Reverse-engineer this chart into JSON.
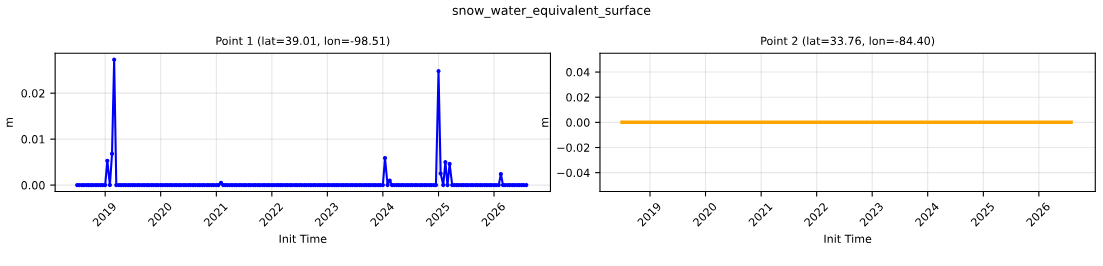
{
  "chart_data": [
    {
      "type": "line",
      "title": "Point 1 (lat=39.01, lon=-98.51)",
      "xlabel": "Init Time",
      "ylabel": "m",
      "annotations": [
        "snow_water_equivalent_surface"
      ],
      "x": [
        "2018-07-01",
        "2018-07-15",
        "2018-08-01",
        "2018-08-15",
        "2018-09-01",
        "2018-09-15",
        "2018-10-01",
        "2018-10-15",
        "2018-11-01",
        "2018-11-15",
        "2018-12-01",
        "2018-12-15",
        "2019-01-01",
        "2019-01-15",
        "2019-02-01",
        "2019-02-15",
        "2019-03-01",
        "2019-03-15",
        "2019-04-01",
        "2019-04-15",
        "2019-05-01",
        "2019-05-15",
        "2019-06-01",
        "2019-06-15",
        "2019-07-01",
        "2019-07-15",
        "2019-08-01",
        "2019-08-15",
        "2019-09-01",
        "2019-09-15",
        "2019-10-01",
        "2019-10-15",
        "2019-11-01",
        "2019-11-15",
        "2019-12-01",
        "2019-12-15",
        "2020-01-01",
        "2020-01-15",
        "2020-02-01",
        "2020-02-15",
        "2020-03-01",
        "2020-03-15",
        "2020-04-01",
        "2020-04-15",
        "2020-05-01",
        "2020-05-15",
        "2020-06-01",
        "2020-06-15",
        "2020-07-01",
        "2020-07-15",
        "2020-08-01",
        "2020-08-15",
        "2020-09-01",
        "2020-09-15",
        "2020-10-01",
        "2020-10-15",
        "2020-11-01",
        "2020-11-15",
        "2020-12-01",
        "2020-12-15",
        "2021-01-01",
        "2021-01-15",
        "2021-02-01",
        "2021-02-15",
        "2021-03-01",
        "2021-03-15",
        "2021-04-01",
        "2021-04-15",
        "2021-05-01",
        "2021-05-15",
        "2021-06-01",
        "2021-06-15",
        "2021-07-01",
        "2021-07-15",
        "2021-08-01",
        "2021-08-15",
        "2021-09-01",
        "2021-09-15",
        "2021-10-01",
        "2021-10-15",
        "2021-11-01",
        "2021-11-15",
        "2021-12-01",
        "2021-12-15",
        "2022-01-01",
        "2022-01-15",
        "2022-02-01",
        "2022-02-15",
        "2022-03-01",
        "2022-03-15",
        "2022-04-01",
        "2022-04-15",
        "2022-05-01",
        "2022-05-15",
        "2022-06-01",
        "2022-06-15",
        "2022-07-01",
        "2022-07-15",
        "2022-08-01",
        "2022-08-15",
        "2022-09-01",
        "2022-09-15",
        "2022-10-01",
        "2022-10-15",
        "2022-11-01",
        "2022-11-15",
        "2022-12-01",
        "2022-12-15",
        "2023-01-01",
        "2023-01-15",
        "2023-02-01",
        "2023-02-15",
        "2023-03-01",
        "2023-03-15",
        "2023-04-01",
        "2023-04-15",
        "2023-05-01",
        "2023-05-15",
        "2023-06-01",
        "2023-06-15",
        "2023-07-01",
        "2023-07-15",
        "2023-08-01",
        "2023-08-15",
        "2023-09-01",
        "2023-09-15",
        "2023-10-01",
        "2023-10-15",
        "2023-11-01",
        "2023-11-15",
        "2023-12-01",
        "2023-12-15",
        "2024-01-01",
        "2024-01-15",
        "2024-02-01",
        "2024-02-15",
        "2024-03-01",
        "2024-03-15",
        "2024-04-01",
        "2024-04-15",
        "2024-05-01",
        "2024-05-15",
        "2024-06-01",
        "2024-06-15",
        "2024-07-01",
        "2024-07-15",
        "2024-08-01",
        "2024-08-15",
        "2024-09-01",
        "2024-09-15",
        "2024-10-01",
        "2024-10-15",
        "2024-11-01",
        "2024-11-15",
        "2024-12-01",
        "2024-12-15",
        "2025-01-01",
        "2025-01-15",
        "2025-02-01",
        "2025-02-15",
        "2025-03-01",
        "2025-03-15",
        "2025-04-01",
        "2025-04-15",
        "2025-05-01",
        "2025-05-15",
        "2025-06-01",
        "2025-06-15",
        "2025-07-01",
        "2025-07-15",
        "2025-08-01",
        "2025-08-15",
        "2025-09-01",
        "2025-09-15",
        "2025-10-01",
        "2025-10-15",
        "2025-11-01",
        "2025-11-15",
        "2025-12-01",
        "2025-12-15",
        "2026-01-01",
        "2026-01-15",
        "2026-02-01",
        "2026-02-15",
        "2026-03-01",
        "2026-03-15",
        "2026-04-01",
        "2026-04-15",
        "2026-05-01",
        "2026-05-15",
        "2026-06-01",
        "2026-06-15",
        "2026-07-01",
        "2026-07-15",
        "2026-08-01"
      ],
      "series": [
        {
          "color": "#0000ff",
          "values": [
            0,
            0,
            0,
            0,
            0,
            0,
            0,
            0,
            0,
            0,
            0,
            0,
            0,
            0.0053,
            0,
            0.0068,
            0.0273,
            0,
            0,
            0,
            0,
            0,
            0,
            0,
            0,
            0,
            0,
            0,
            0,
            0,
            0,
            0,
            0,
            0,
            0,
            0,
            0,
            0,
            0,
            0,
            0,
            0,
            0,
            0,
            0,
            0,
            0,
            0,
            0,
            0,
            0,
            0,
            0,
            0,
            0,
            0,
            0,
            0,
            0,
            0,
            0,
            0,
            0.0005,
            0,
            0,
            0,
            0,
            0,
            0,
            0,
            0,
            0,
            0,
            0,
            0,
            0,
            0,
            0,
            0,
            0,
            0,
            0,
            0,
            0,
            0,
            0,
            0,
            0,
            0,
            0,
            0,
            0,
            0,
            0,
            0,
            0,
            0,
            0,
            0,
            0,
            0,
            0,
            0,
            0,
            0,
            0,
            0,
            0,
            0,
            0,
            0,
            0,
            0,
            0,
            0,
            0,
            0,
            0,
            0,
            0,
            0,
            0,
            0,
            0,
            0,
            0,
            0,
            0,
            0,
            0,
            0,
            0,
            0,
            0.0059,
            0,
            0.001,
            0,
            0,
            0,
            0,
            0,
            0,
            0,
            0,
            0,
            0,
            0,
            0,
            0,
            0,
            0,
            0,
            0,
            0,
            0,
            0,
            0.0248,
            0.0025,
            0,
            0.005,
            0,
            0.0046,
            0,
            0,
            0,
            0,
            0,
            0,
            0,
            0,
            0,
            0,
            0,
            0,
            0,
            0,
            0,
            0,
            0,
            0,
            0,
            0,
            0,
            0.0024,
            0,
            0,
            0,
            0,
            0,
            0,
            0,
            0,
            0,
            0,
            0
          ]
        }
      ],
      "xlim": [
        "2018-02-06",
        "2027-01-07"
      ],
      "xticks": [
        "2019",
        "2020",
        "2021",
        "2022",
        "2023",
        "2024",
        "2025",
        "2026"
      ],
      "ylim": [
        -0.0014,
        0.0287
      ],
      "yticks": [
        {
          "value": 0,
          "label": "0.00"
        },
        {
          "value": 0.01,
          "label": "0.01"
        },
        {
          "value": 0.02,
          "label": "0.02"
        }
      ],
      "grid": true,
      "marker": "circle",
      "line_style": "solid"
    },
    {
      "type": "line",
      "title": "Point 2 (lat=33.76, lon=-84.40)",
      "xlabel": "Init Time",
      "ylabel": "m",
      "x": [
        "2018-07-01",
        "2018-07-15",
        "2018-08-01",
        "2018-08-15",
        "2018-09-01",
        "2018-09-15",
        "2018-10-01",
        "2018-10-15",
        "2018-11-01",
        "2018-11-15",
        "2018-12-01",
        "2018-12-15",
        "2019-01-01",
        "2019-01-15",
        "2019-02-01",
        "2019-02-15",
        "2019-03-01",
        "2019-03-15",
        "2019-04-01",
        "2019-04-15",
        "2019-05-01",
        "2019-05-15",
        "2019-06-01",
        "2019-06-15",
        "2019-07-01",
        "2019-07-15",
        "2019-08-01",
        "2019-08-15",
        "2019-09-01",
        "2019-09-15",
        "2019-10-01",
        "2019-10-15",
        "2019-11-01",
        "2019-11-15",
        "2019-12-01",
        "2019-12-15",
        "2020-01-01",
        "2020-01-15",
        "2020-02-01",
        "2020-02-15",
        "2020-03-01",
        "2020-03-15",
        "2020-04-01",
        "2020-04-15",
        "2020-05-01",
        "2020-05-15",
        "2020-06-01",
        "2020-06-15",
        "2020-07-01",
        "2020-07-15",
        "2020-08-01",
        "2020-08-15",
        "2020-09-01",
        "2020-09-15",
        "2020-10-01",
        "2020-10-15",
        "2020-11-01",
        "2020-11-15",
        "2020-12-01",
        "2020-12-15",
        "2021-01-01",
        "2021-01-15",
        "2021-02-01",
        "2021-02-15",
        "2021-03-01",
        "2021-03-15",
        "2021-04-01",
        "2021-04-15",
        "2021-05-01",
        "2021-05-15",
        "2021-06-01",
        "2021-06-15",
        "2021-07-01",
        "2021-07-15",
        "2021-08-01",
        "2021-08-15",
        "2021-09-01",
        "2021-09-15",
        "2021-10-01",
        "2021-10-15",
        "2021-11-01",
        "2021-11-15",
        "2021-12-01",
        "2021-12-15",
        "2022-01-01",
        "2022-01-15",
        "2022-02-01",
        "2022-02-15",
        "2022-03-01",
        "2022-03-15",
        "2022-04-01",
        "2022-04-15",
        "2022-05-01",
        "2022-05-15",
        "2022-06-01",
        "2022-06-15",
        "2022-07-01",
        "2022-07-15",
        "2022-08-01",
        "2022-08-15",
        "2022-09-01",
        "2022-09-15",
        "2022-10-01",
        "2022-10-15",
        "2022-11-01",
        "2022-11-15",
        "2022-12-01",
        "2022-12-15",
        "2023-01-01",
        "2023-01-15",
        "2023-02-01",
        "2023-02-15",
        "2023-03-01",
        "2023-03-15",
        "2023-04-01",
        "2023-04-15",
        "2023-05-01",
        "2023-05-15",
        "2023-06-01",
        "2023-06-15",
        "2023-07-01",
        "2023-07-15",
        "2023-08-01",
        "2023-08-15",
        "2023-09-01",
        "2023-09-15",
        "2023-10-01",
        "2023-10-15",
        "2023-11-01",
        "2023-11-15",
        "2023-12-01",
        "2023-12-15",
        "2024-01-01",
        "2024-01-15",
        "2024-02-01",
        "2024-02-15",
        "2024-03-01",
        "2024-03-15",
        "2024-04-01",
        "2024-04-15",
        "2024-05-01",
        "2024-05-15",
        "2024-06-01",
        "2024-06-15",
        "2024-07-01",
        "2024-07-15",
        "2024-08-01",
        "2024-08-15",
        "2024-09-01",
        "2024-09-15",
        "2024-10-01",
        "2024-10-15",
        "2024-11-01",
        "2024-11-15",
        "2024-12-01",
        "2024-12-15",
        "2025-01-01",
        "2025-01-15",
        "2025-02-01",
        "2025-02-15",
        "2025-03-01",
        "2025-03-15",
        "2025-04-01",
        "2025-04-15",
        "2025-05-01",
        "2025-05-15",
        "2025-06-01",
        "2025-06-15",
        "2025-07-01",
        "2025-07-15",
        "2025-08-01",
        "2025-08-15",
        "2025-09-01",
        "2025-09-15",
        "2025-10-01",
        "2025-10-15",
        "2025-11-01",
        "2025-11-15",
        "2025-12-01",
        "2025-12-15",
        "2026-01-01",
        "2026-01-15",
        "2026-02-01",
        "2026-02-15",
        "2026-03-01",
        "2026-03-15",
        "2026-04-01",
        "2026-04-15",
        "2026-05-01",
        "2026-05-15",
        "2026-06-01",
        "2026-06-15",
        "2026-07-01",
        "2026-07-15",
        "2026-08-01"
      ],
      "series": [
        {
          "color": "#ffa500",
          "values": [
            0,
            0,
            0,
            0,
            0,
            0,
            0,
            0,
            0,
            0,
            0,
            0,
            0,
            0,
            0,
            0,
            0,
            0,
            0,
            0,
            0,
            0,
            0,
            0,
            0,
            0,
            0,
            0,
            0,
            0,
            0,
            0,
            0,
            0,
            0,
            0,
            0,
            0,
            0,
            0,
            0,
            0,
            0,
            0,
            0,
            0,
            0,
            0,
            0,
            0,
            0,
            0,
            0,
            0,
            0,
            0,
            0,
            0,
            0,
            0,
            0,
            0,
            0,
            0,
            0,
            0,
            0,
            0,
            0,
            0,
            0,
            0,
            0,
            0,
            0,
            0,
            0,
            0,
            0,
            0,
            0,
            0,
            0,
            0,
            0,
            0,
            0,
            0,
            0,
            0,
            0,
            0,
            0,
            0,
            0,
            0,
            0,
            0,
            0,
            0,
            0,
            0,
            0,
            0,
            0,
            0,
            0,
            0,
            0,
            0,
            0,
            0,
            0,
            0,
            0,
            0,
            0,
            0,
            0,
            0,
            0,
            0,
            0,
            0,
            0,
            0,
            0,
            0,
            0,
            0,
            0,
            0,
            0,
            0,
            0,
            0,
            0,
            0,
            0,
            0,
            0,
            0,
            0,
            0,
            0,
            0,
            0,
            0,
            0,
            0,
            0,
            0,
            0,
            0,
            0,
            0,
            0,
            0,
            0,
            0,
            0,
            0,
            0,
            0,
            0,
            0,
            0,
            0,
            0,
            0,
            0,
            0,
            0,
            0,
            0,
            0,
            0,
            0,
            0,
            0,
            0,
            0,
            0,
            0,
            0,
            0,
            0,
            0,
            0,
            0,
            0,
            0,
            0,
            0,
            0
          ]
        }
      ],
      "xlim": [
        "2018-02-06",
        "2027-01-07"
      ],
      "xticks": [
        "2019",
        "2020",
        "2021",
        "2022",
        "2023",
        "2024",
        "2025",
        "2026"
      ],
      "ylim": [
        -0.055,
        0.055
      ],
      "yticks": [
        {
          "value": -0.04,
          "label": "−0.04"
        },
        {
          "value": -0.02,
          "label": "−0.02"
        },
        {
          "value": 0,
          "label": "0.00"
        },
        {
          "value": 0.02,
          "label": "0.02"
        },
        {
          "value": 0.04,
          "label": "0.04"
        }
      ],
      "grid": true,
      "marker": "none",
      "line_style": "solid"
    }
  ]
}
